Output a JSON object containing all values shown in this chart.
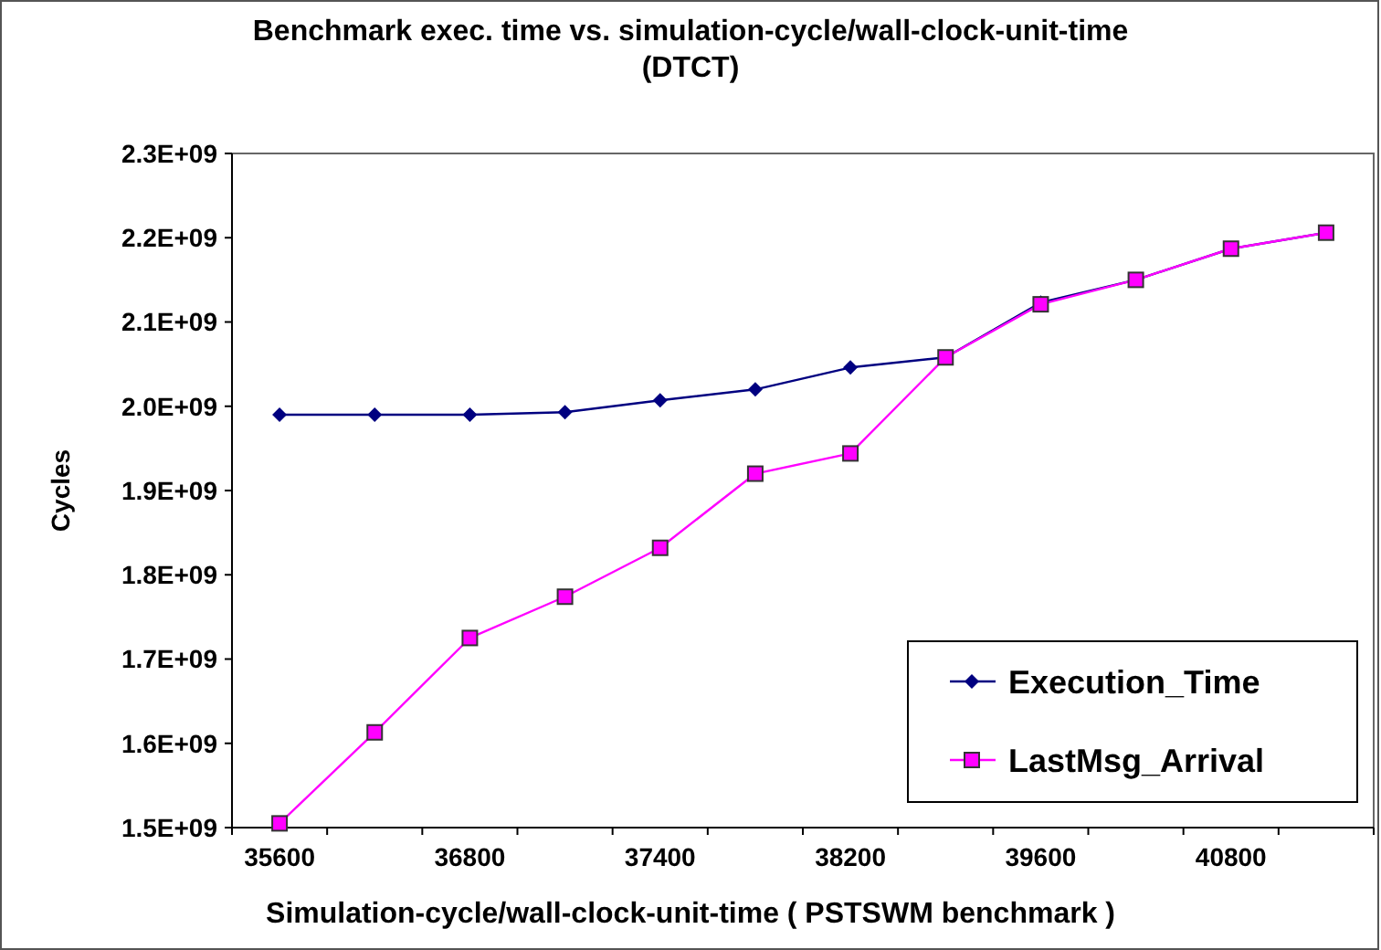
{
  "chart_data": {
    "type": "line",
    "title": "Benchmark exec. time  vs. simulation-cycle/wall-clock-unit-time\n(DTCT)",
    "xlabel": "Simulation-cycle/wall-clock-unit-time ( PSTSWM benchmark )",
    "ylabel": "Cycles",
    "categories": [
      "35600",
      null,
      "36800",
      null,
      "37400",
      null,
      "38200",
      null,
      "39600",
      null,
      "40800",
      null
    ],
    "series": [
      {
        "name": "Execution_Time",
        "color": "#000080",
        "marker": "diamond",
        "values": [
          1990000000.0,
          1990000000.0,
          1990000000.0,
          1993000000.0,
          2007000000.0,
          2020000000.0,
          2046000000.0,
          2058000000.0,
          2123000000.0,
          2150000000.0,
          2187000000.0,
          2206000000.0
        ]
      },
      {
        "name": "LastMsg_Arrival",
        "color": "#ff00ff",
        "marker": "square",
        "values": [
          1505000000.0,
          1613000000.0,
          1725000000.0,
          1774000000.0,
          1832000000.0,
          1920000000.0,
          1944000000.0,
          2058000000.0,
          2121000000.0,
          2150000000.0,
          2187000000.0,
          2206000000.0
        ]
      }
    ],
    "ylim": [
      1500000000.0,
      2300000000.0
    ],
    "yticks": [
      {
        "value": 1500000000.0,
        "label": "1.5E+09"
      },
      {
        "value": 1600000000.0,
        "label": "1.6E+09"
      },
      {
        "value": 1700000000.0,
        "label": "1.7E+09"
      },
      {
        "value": 1800000000.0,
        "label": "1.8E+09"
      },
      {
        "value": 1900000000.0,
        "label": "1.9E+09"
      },
      {
        "value": 2000000000.0,
        "label": "2.0E+09"
      },
      {
        "value": 2100000000.0,
        "label": "2.1E+09"
      },
      {
        "value": 2200000000.0,
        "label": "2.2E+09"
      },
      {
        "value": 2300000000.0,
        "label": "2.3E+09"
      }
    ],
    "grid": false,
    "legend": "bottom right"
  }
}
